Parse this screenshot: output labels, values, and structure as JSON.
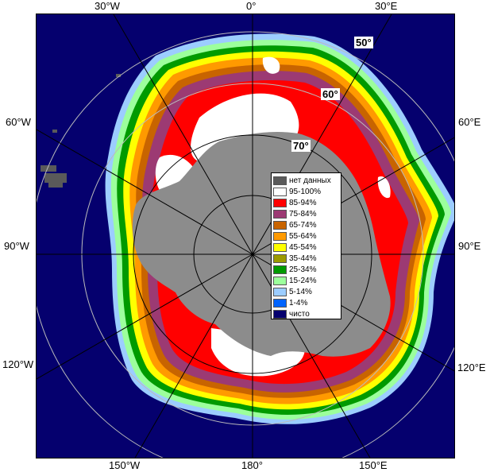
{
  "longitude_labels": {
    "w30": "30°W",
    "zero": "0°",
    "e30": "30°E",
    "w60": "60°W",
    "e60": "60°E",
    "w90": "90°W",
    "e90": "90°E",
    "w120": "120°W",
    "e120": "120°E",
    "w150": "150°W",
    "deg180": "180°",
    "e150": "150°E"
  },
  "latitude_labels": {
    "lat50": "50°",
    "lat60": "60°",
    "lat70": "70°"
  },
  "legend": [
    {
      "label": "нет данных",
      "color": "#5a5a5a"
    },
    {
      "label": "95-100%",
      "color": "#ffffff"
    },
    {
      "label": "85-94%",
      "color": "#ff0000"
    },
    {
      "label": "75-84%",
      "color": "#9c3a73"
    },
    {
      "label": "65-74%",
      "color": "#c86400"
    },
    {
      "label": "55-64%",
      "color": "#ff9a00"
    },
    {
      "label": "45-54%",
      "color": "#ffff00"
    },
    {
      "label": "35-44%",
      "color": "#9c9a00"
    },
    {
      "label": "25-34%",
      "color": "#009a00"
    },
    {
      "label": "15-24%",
      "color": "#9cff9c"
    },
    {
      "label": "5-14%",
      "color": "#9ccdff"
    },
    {
      "label": "1-4%",
      "color": "#0064ff"
    },
    {
      "label": "чисто",
      "color": "#05006e"
    }
  ],
  "colors": {
    "ocean": "#05006e",
    "land": "#8c8c8c",
    "no_data": "#5a5a5a",
    "grid": "#000000"
  }
}
